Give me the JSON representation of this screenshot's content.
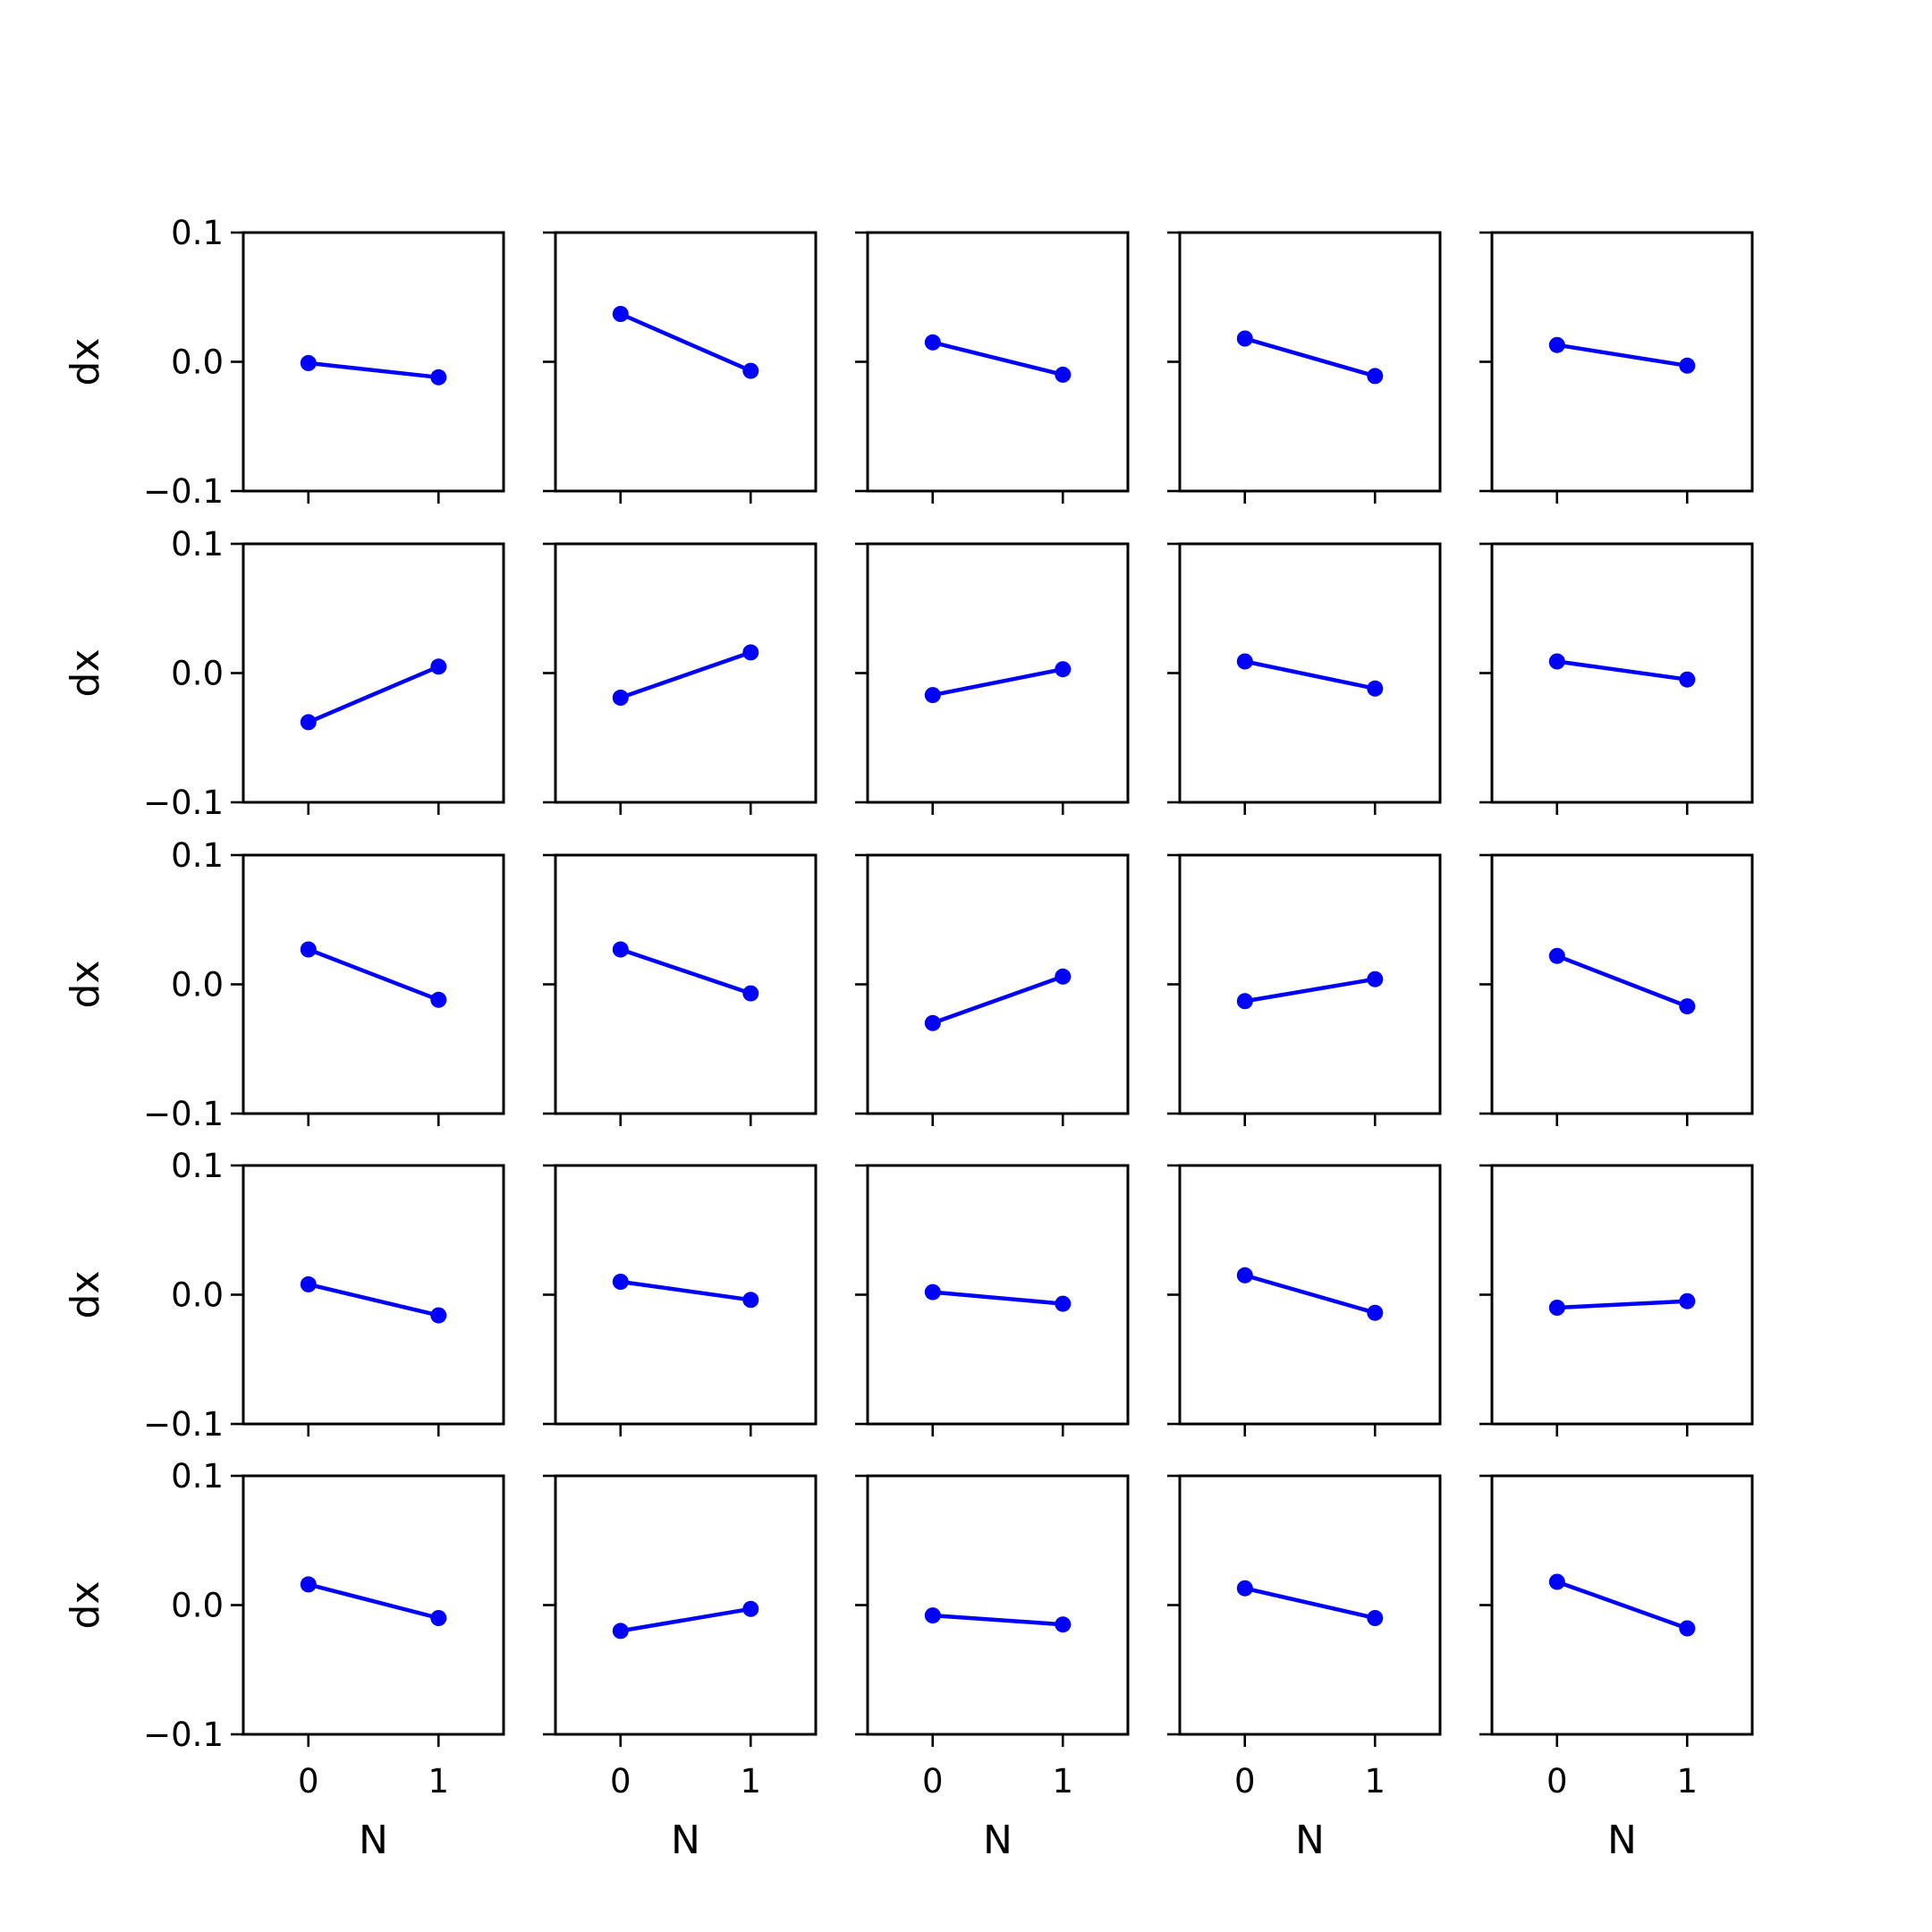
{
  "chart_data": {
    "type": "line",
    "layout": "5x5 grid of small multiples",
    "shared_axes": true,
    "xlabel": "N",
    "ylabel": "dx",
    "xlim": [
      -0.5,
      1.5
    ],
    "ylim": [
      -0.1,
      0.1
    ],
    "x_ticks": [
      0,
      1
    ],
    "x_tick_labels": [
      "0",
      "1"
    ],
    "y_ticks": [
      -0.1,
      0.0,
      0.1
    ],
    "y_tick_labels": [
      "−0.1",
      "0.0",
      "0.1"
    ],
    "grid": false,
    "legend": "none",
    "line_color": "#0000ff",
    "marker": "circle",
    "x": [
      0,
      1
    ],
    "panels": [
      {
        "row": 0,
        "col": 0,
        "y": [
          -0.001,
          -0.012
        ]
      },
      {
        "row": 0,
        "col": 1,
        "y": [
          0.037,
          -0.007
        ]
      },
      {
        "row": 0,
        "col": 2,
        "y": [
          0.015,
          -0.01
        ]
      },
      {
        "row": 0,
        "col": 3,
        "y": [
          0.018,
          -0.011
        ]
      },
      {
        "row": 0,
        "col": 4,
        "y": [
          0.013,
          -0.003
        ]
      },
      {
        "row": 1,
        "col": 0,
        "y": [
          -0.038,
          0.005
        ]
      },
      {
        "row": 1,
        "col": 1,
        "y": [
          -0.019,
          0.016
        ]
      },
      {
        "row": 1,
        "col": 2,
        "y": [
          -0.017,
          0.003
        ]
      },
      {
        "row": 1,
        "col": 3,
        "y": [
          0.009,
          -0.012
        ]
      },
      {
        "row": 1,
        "col": 4,
        "y": [
          0.009,
          -0.005
        ]
      },
      {
        "row": 2,
        "col": 0,
        "y": [
          0.027,
          -0.012
        ]
      },
      {
        "row": 2,
        "col": 1,
        "y": [
          0.027,
          -0.007
        ]
      },
      {
        "row": 2,
        "col": 2,
        "y": [
          -0.03,
          0.006
        ]
      },
      {
        "row": 2,
        "col": 3,
        "y": [
          -0.013,
          0.004
        ]
      },
      {
        "row": 2,
        "col": 4,
        "y": [
          0.022,
          -0.017
        ]
      },
      {
        "row": 3,
        "col": 0,
        "y": [
          0.008,
          -0.016
        ]
      },
      {
        "row": 3,
        "col": 1,
        "y": [
          0.01,
          -0.004
        ]
      },
      {
        "row": 3,
        "col": 2,
        "y": [
          0.002,
          -0.007
        ]
      },
      {
        "row": 3,
        "col": 3,
        "y": [
          0.015,
          -0.014
        ]
      },
      {
        "row": 3,
        "col": 4,
        "y": [
          -0.01,
          -0.005
        ]
      },
      {
        "row": 4,
        "col": 0,
        "y": [
          0.016,
          -0.01
        ]
      },
      {
        "row": 4,
        "col": 1,
        "y": [
          -0.02,
          -0.003
        ]
      },
      {
        "row": 4,
        "col": 2,
        "y": [
          -0.008,
          -0.015
        ]
      },
      {
        "row": 4,
        "col": 3,
        "y": [
          0.013,
          -0.01
        ]
      },
      {
        "row": 4,
        "col": 4,
        "y": [
          0.018,
          -0.018
        ]
      }
    ]
  }
}
